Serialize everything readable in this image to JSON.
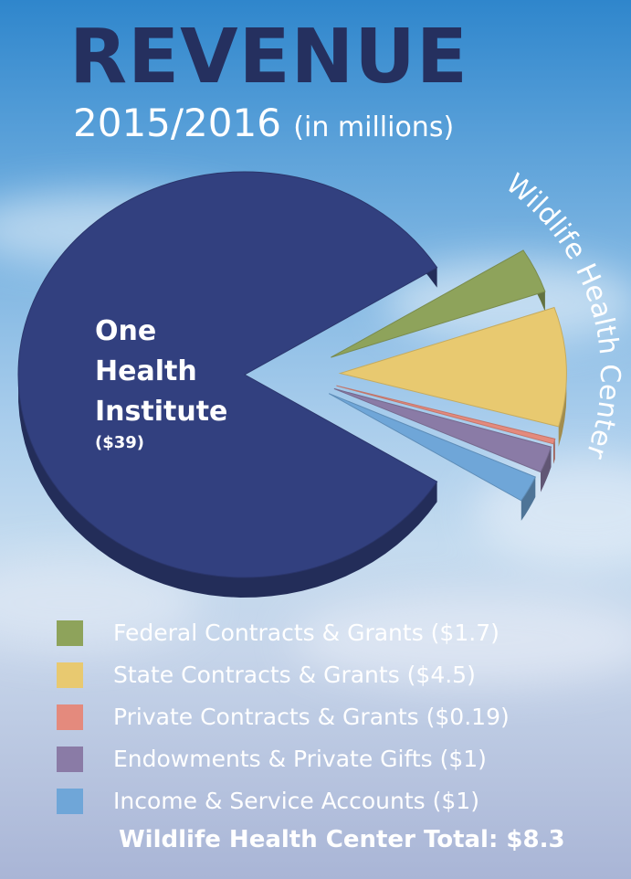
{
  "header": {
    "title": "REVENUE",
    "years": "2015/2016",
    "unit_note": "(in millions)"
  },
  "chart_data": {
    "type": "pie",
    "title": "REVENUE",
    "subtitle": "2015/2016 (in millions)",
    "main_slice": {
      "name_lines": [
        "One",
        "Health",
        "Institute"
      ],
      "value_label": "($39)",
      "value": 39,
      "color": "#32407f"
    },
    "group_label": "Wildlife Health Center",
    "series": [
      {
        "name": "Federal Contracts & Grants ($1.7)",
        "value": 1.7,
        "color": "#8ea35b"
      },
      {
        "name": "State Contracts & Grants ($4.5)",
        "value": 4.5,
        "color": "#e8c970"
      },
      {
        "name": "Private Contracts & Grants ($0.19)",
        "value": 0.19,
        "color": "#e48a7d"
      },
      {
        "name": "Endowments & Private Gifts ($1)",
        "value": 1,
        "color": "#8a7ba6"
      },
      {
        "name": "Income & Service Accounts ($1)",
        "value": 1,
        "color": "#6fa6d8"
      }
    ],
    "total_label": "Wildlife Health Center Total: $8.3",
    "legend_position": "bottom"
  }
}
